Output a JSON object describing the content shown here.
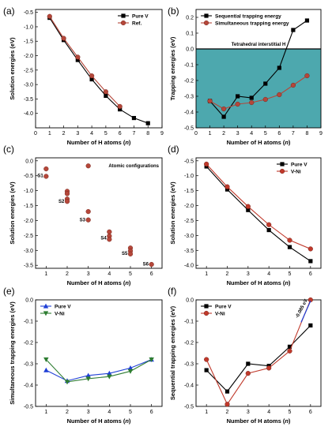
{
  "figure": {
    "panels": [
      {
        "label": "(a)"
      },
      {
        "label": "(b)"
      },
      {
        "label": "(c)"
      },
      {
        "label": "(d)"
      },
      {
        "label": "(e)"
      },
      {
        "label": "(f)"
      }
    ]
  },
  "chart_data": [
    {
      "id": "a",
      "type": "line",
      "title": "",
      "xlabel": "Number of H atoms (n)",
      "ylabel": "Solution energies (eV)",
      "xlim": [
        0,
        9
      ],
      "ylim": [
        -4.5,
        -0.4
      ],
      "xticks": [
        "0",
        "1",
        "2",
        "3",
        "4",
        "5",
        "6",
        "7",
        "8",
        "9"
      ],
      "yticks": [
        "-0.5",
        "-1.0",
        "-1.5",
        "-2.0",
        "-2.5",
        "-3.0",
        "-3.5",
        "-4.0"
      ],
      "legend_position": "top-right",
      "series": [
        {
          "name": "Pure V",
          "color": "#000000",
          "marker": "square",
          "x": [
            1,
            2,
            3,
            4,
            5,
            6,
            7,
            8
          ],
          "y": [
            -0.69,
            -1.46,
            -2.15,
            -2.82,
            -3.39,
            -3.86,
            -4.16,
            -4.34
          ]
        },
        {
          "name": "Ref.",
          "color": "#b5473a",
          "marker": "circle",
          "x": [
            1,
            2,
            3,
            4,
            5,
            6
          ],
          "y": [
            -0.64,
            -1.4,
            -2.05,
            -2.7,
            -3.25,
            -3.76
          ]
        }
      ]
    },
    {
      "id": "b",
      "type": "line",
      "title": "",
      "xlabel": "Number of H atoms (n)",
      "ylabel": "Trapping energies (eV)",
      "xlim": [
        0,
        9
      ],
      "ylim": [
        -0.5,
        0.25
      ],
      "xticks": [
        "0",
        "1",
        "2",
        "3",
        "4",
        "5",
        "6",
        "7",
        "8",
        "9"
      ],
      "yticks": [
        "0.2",
        "0.1",
        "0.0",
        "-0.1",
        "-0.2",
        "-0.3",
        "-0.4",
        "-0.5"
      ],
      "legend_position": "top-left",
      "annotation": "Tetrahedral interstitial H",
      "shaded_region": {
        "from": -0.5,
        "to": 0.0,
        "color": "#3a9ea5"
      },
      "series": [
        {
          "name": "Sequential trapping energy",
          "color": "#000000",
          "marker": "square",
          "x": [
            1,
            2,
            3,
            4,
            5,
            6,
            7,
            8
          ],
          "y": [
            -0.33,
            -0.43,
            -0.3,
            -0.31,
            -0.22,
            -0.12,
            0.12,
            0.18
          ]
        },
        {
          "name": "Simultaneous trapping energy",
          "color": "#b5473a",
          "marker": "circle",
          "x": [
            1,
            2,
            3,
            4,
            5,
            6,
            7,
            8
          ],
          "y": [
            -0.33,
            -0.38,
            -0.35,
            -0.34,
            -0.32,
            -0.29,
            -0.23,
            -0.17
          ]
        }
      ]
    },
    {
      "id": "c",
      "type": "scatter",
      "title": "",
      "xlabel": "Number of H atoms (n)",
      "ylabel": "Solution energies (eV)",
      "xlim": [
        0.5,
        6.5
      ],
      "ylim": [
        -3.6,
        0.1
      ],
      "xticks": [
        "1",
        "2",
        "3",
        "4",
        "5",
        "6"
      ],
      "yticks": [
        "0.0",
        "-0.5",
        "-1.0",
        "-1.5",
        "-2.0",
        "-2.5",
        "-3.0",
        "-3.5"
      ],
      "annotation": "Atomic configurations",
      "config_labels": [
        {
          "text": "S1",
          "x": 1,
          "y": -0.5
        },
        {
          "text": "S2",
          "x": 2,
          "y": -1.35
        },
        {
          "text": "S3",
          "x": 3,
          "y": -1.98
        },
        {
          "text": "S4",
          "x": 4,
          "y": -2.58
        },
        {
          "text": "S5",
          "x": 5,
          "y": -3.1
        },
        {
          "text": "S6",
          "x": 6,
          "y": -3.45
        }
      ],
      "series": [
        {
          "name": "",
          "color": "#b5473a",
          "marker": "circle",
          "x": [
            1,
            1,
            2,
            2,
            2,
            2,
            3,
            3,
            3,
            4,
            4,
            4,
            5,
            5,
            5,
            6
          ],
          "y": [
            -0.27,
            -0.52,
            -1.02,
            -1.1,
            -1.28,
            -1.36,
            -0.17,
            -1.7,
            -1.98,
            -2.38,
            -2.52,
            -2.63,
            -2.92,
            -3.02,
            -3.12,
            -3.47
          ]
        }
      ]
    },
    {
      "id": "d",
      "type": "line",
      "title": "",
      "xlabel": "Number of H atoms (n)",
      "ylabel": "Solution energies (eV)",
      "xlim": [
        0.5,
        6.5
      ],
      "ylim": [
        -4.1,
        -0.4
      ],
      "xticks": [
        "1",
        "2",
        "3",
        "4",
        "5",
        "6"
      ],
      "yticks": [
        "-0.5",
        "-1.0",
        "-1.5",
        "-2.0",
        "-2.5",
        "-3.0",
        "-3.5",
        "-4.0"
      ],
      "legend_position": "top-right",
      "series": [
        {
          "name": "Pure V",
          "color": "#000000",
          "marker": "square",
          "x": [
            1,
            2,
            3,
            4,
            5,
            6
          ],
          "y": [
            -0.69,
            -1.46,
            -2.15,
            -2.82,
            -3.39,
            -3.86
          ]
        },
        {
          "name": "V-Ni",
          "color": "#c0392b",
          "marker": "circle",
          "x": [
            1,
            2,
            3,
            4,
            5,
            6
          ],
          "y": [
            -0.61,
            -1.37,
            -2.03,
            -2.64,
            -3.16,
            -3.45
          ]
        }
      ]
    },
    {
      "id": "e",
      "type": "line",
      "title": "",
      "xlabel": "Number of H atoms (n)",
      "ylabel": "Simultaneous trapping energies (eV)",
      "xlim": [
        0.5,
        6.5
      ],
      "ylim": [
        -0.5,
        0.0
      ],
      "xticks": [
        "1",
        "2",
        "3",
        "4",
        "5",
        "6"
      ],
      "yticks": [
        "0.0",
        "-0.1",
        "-0.2",
        "-0.3",
        "-0.4",
        "-0.5"
      ],
      "legend_position": "top-left",
      "series": [
        {
          "name": "Pure V",
          "color": "#1f3fd6",
          "marker": "triangle-up",
          "x": [
            1,
            2,
            3,
            4,
            5,
            6
          ],
          "y": [
            -0.33,
            -0.38,
            -0.355,
            -0.345,
            -0.32,
            -0.28
          ]
        },
        {
          "name": "V-Ni",
          "color": "#2e7d32",
          "marker": "triangle-down",
          "x": [
            1,
            2,
            3,
            4,
            5,
            6
          ],
          "y": [
            -0.28,
            -0.385,
            -0.37,
            -0.36,
            -0.335,
            -0.28
          ]
        }
      ]
    },
    {
      "id": "f",
      "type": "line",
      "title": "",
      "xlabel": "Number of H atoms (n)",
      "ylabel": "Sequential trapping energies (eV)",
      "xlim": [
        0.5,
        6.5
      ],
      "ylim": [
        -0.5,
        0.0
      ],
      "xticks": [
        "1",
        "2",
        "3",
        "4",
        "5",
        "6"
      ],
      "yticks": [
        "0.0",
        "-0.1",
        "-0.2",
        "-0.3",
        "-0.4",
        "-0.5"
      ],
      "legend_position": "top-left",
      "annotation": "-0.085 eV",
      "series": [
        {
          "name": "Pure V",
          "color": "#000000",
          "marker": "square",
          "x": [
            1,
            2,
            3,
            4,
            5,
            6
          ],
          "y": [
            -0.33,
            -0.43,
            -0.3,
            -0.31,
            -0.22,
            -0.12
          ]
        },
        {
          "name": "V-Ni",
          "color": "#c0392b",
          "marker": "circle",
          "x": [
            1,
            2,
            3,
            4,
            5,
            6
          ],
          "y": [
            -0.28,
            -0.49,
            -0.345,
            -0.32,
            -0.24,
            0.0
          ]
        }
      ]
    }
  ]
}
